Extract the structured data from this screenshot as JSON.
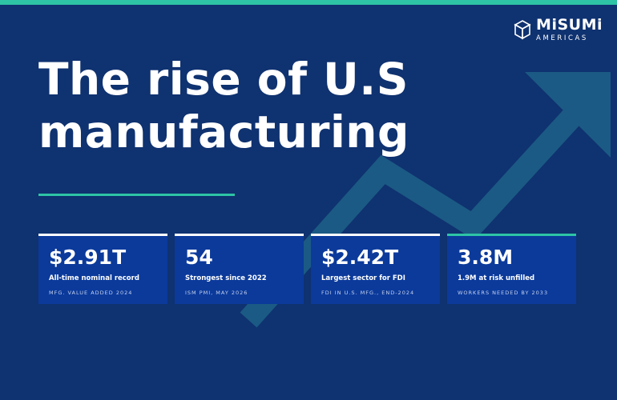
{
  "logo": {
    "name": "MiSUMi",
    "subtitle": "AMERICAS"
  },
  "headline": {
    "line1": "The rise of U.S",
    "line2": "manufacturing"
  },
  "stats": [
    {
      "value": "$2.91T",
      "label": "All-time nominal record",
      "note": "MFG. VALUE ADDED 2024"
    },
    {
      "value": "54",
      "label": "Strongest since 2022",
      "note": "ISM PMI, MAY 2026"
    },
    {
      "value": "$2.42T",
      "label": "Largest sector for FDI",
      "note": "FDI IN U.S. MFG., END-2024"
    },
    {
      "value": "3.8M",
      "label": "1.9M at risk unfilled",
      "note": "WORKERS NEEDED BY 2033"
    }
  ],
  "colors": {
    "background": "#0f3270",
    "accent": "#2ec4a6",
    "card": "#0b3a9b",
    "arrow": "#1b5a84"
  }
}
